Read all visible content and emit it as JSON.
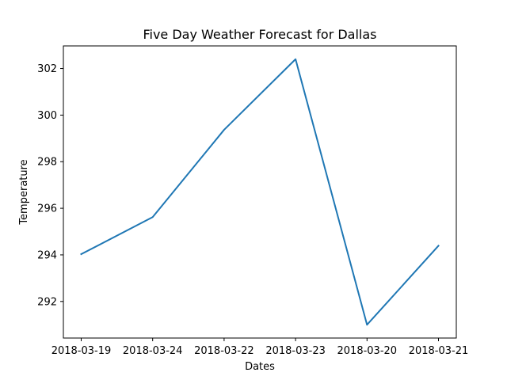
{
  "chart_data": {
    "type": "line",
    "title": "Five Day Weather Forecast for Dallas",
    "xlabel": "Dates",
    "ylabel": "Temperature",
    "categories": [
      "2018-03-19",
      "2018-03-24",
      "2018-03-22",
      "2018-03-23",
      "2018-03-20",
      "2018-03-21"
    ],
    "series": [
      {
        "name": "Temperature",
        "values": [
          294.03,
          295.62,
          299.37,
          302.4,
          291.0,
          294.39
        ],
        "color": "#1f77b4"
      }
    ],
    "ylim": [
      290.43,
      302.97
    ],
    "yticks": [
      292,
      294,
      296,
      298,
      300,
      302
    ],
    "grid": false,
    "legend": "none"
  }
}
